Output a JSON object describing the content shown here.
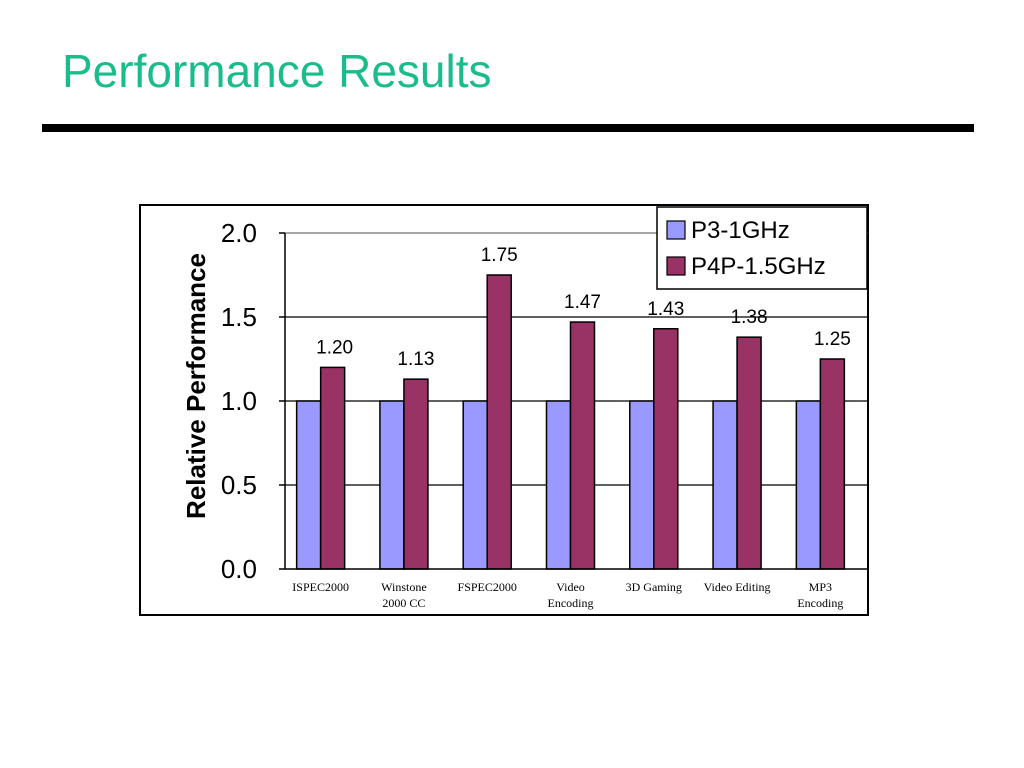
{
  "slide": {
    "title": "Performance Results"
  },
  "chart_data": {
    "type": "bar",
    "title": "",
    "xlabel": "",
    "ylabel": "Relative Performance",
    "ylim": [
      0,
      2.0
    ],
    "yticks": [
      "0.0",
      "0.5",
      "1.0",
      "1.5",
      "2.0"
    ],
    "grid": true,
    "legend": "top-right",
    "categories": [
      [
        "ISPEC2000"
      ],
      [
        "Winstone",
        "2000 CC"
      ],
      [
        "FSPEC2000"
      ],
      [
        "Video",
        "Encoding"
      ],
      [
        "3D Gaming"
      ],
      [
        "Video Editing"
      ],
      [
        "MP3",
        "Encoding"
      ]
    ],
    "series": [
      {
        "name": "P3-1GHz",
        "color": "#9999ff",
        "values": [
          1.0,
          1.0,
          1.0,
          1.0,
          1.0,
          1.0,
          1.0
        ],
        "labels": []
      },
      {
        "name": "P4P-1.5GHz",
        "color": "#993366",
        "values": [
          1.2,
          1.13,
          1.75,
          1.47,
          1.43,
          1.38,
          1.25
        ],
        "labels": [
          "1.20",
          "1.13",
          "1.75",
          "1.47",
          "1.43",
          "1.38",
          "1.25"
        ]
      }
    ]
  }
}
